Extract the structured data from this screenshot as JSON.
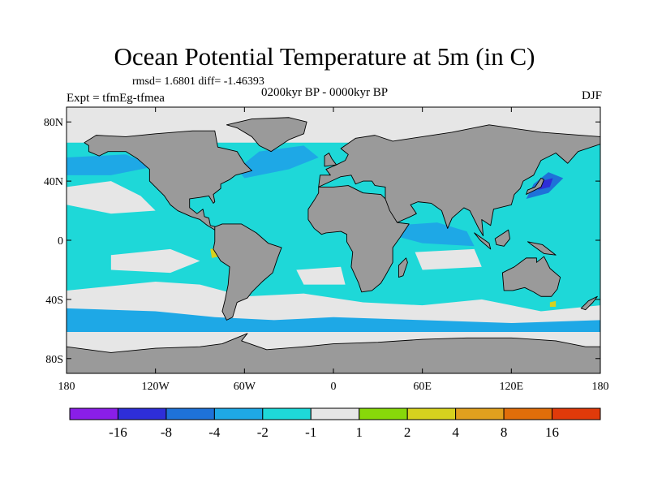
{
  "chart_data": {
    "type": "heatmap",
    "title": "Ocean Potential Temperature at 5m (in C)",
    "stats": "rmsd= 1.6801 diff= -1.46393",
    "experiment": "Expt = tfmEg-tfmea",
    "period": "0200kyr BP - 0000kyr BP",
    "season": "DJF",
    "x_axis": {
      "range": [
        -180,
        180
      ],
      "ticks": [
        -180,
        -120,
        -60,
        0,
        60,
        120,
        180
      ],
      "tick_labels": [
        "180",
        "120W",
        "60W",
        "0",
        "60E",
        "120E",
        "180"
      ]
    },
    "y_axis": {
      "range": [
        -90,
        90
      ],
      "ticks": [
        80,
        40,
        0,
        -40,
        -80
      ],
      "tick_labels": [
        "80N",
        "40N",
        "0",
        "40S",
        "80S"
      ]
    },
    "colorbar": {
      "colors": [
        "#8a1ee8",
        "#2e2ed8",
        "#1e72d8",
        "#1ea8e6",
        "#1ed8d8",
        "#e6e6e6",
        "#88d80a",
        "#d6d21e",
        "#e0a01e",
        "#e06e0a",
        "#e03a0a"
      ],
      "boundaries": [
        "-16",
        "-8",
        "-4",
        "-2",
        "-1",
        "1",
        "2",
        "4",
        "8",
        "16"
      ]
    },
    "land_color": "#9a9a9a",
    "regions": [
      {
        "name": "north-pacific",
        "value_class": "-2 to -1",
        "color": "#1ed8d8"
      },
      {
        "name": "tropical-pacific",
        "value_class": "-2 to -1",
        "color": "#1ed8d8"
      },
      {
        "name": "kuroshio",
        "value_class": "-8 to -4",
        "color": "#1e72d8"
      },
      {
        "name": "indian-ocean",
        "value_class": "-2 to -1",
        "color": "#1ed8d8"
      },
      {
        "name": "southern-ocean",
        "value_class": "-1 to 1",
        "color": "#e6e6e6"
      },
      {
        "name": "north-atlantic",
        "value_class": "-4 to -2",
        "color": "#1ea8e6"
      },
      {
        "name": "arctic",
        "value_class": "-1 to 1",
        "color": "#e6e6e6"
      },
      {
        "name": "peru-coast",
        "value_class": "2 to 4",
        "color": "#d6d21e"
      }
    ]
  }
}
